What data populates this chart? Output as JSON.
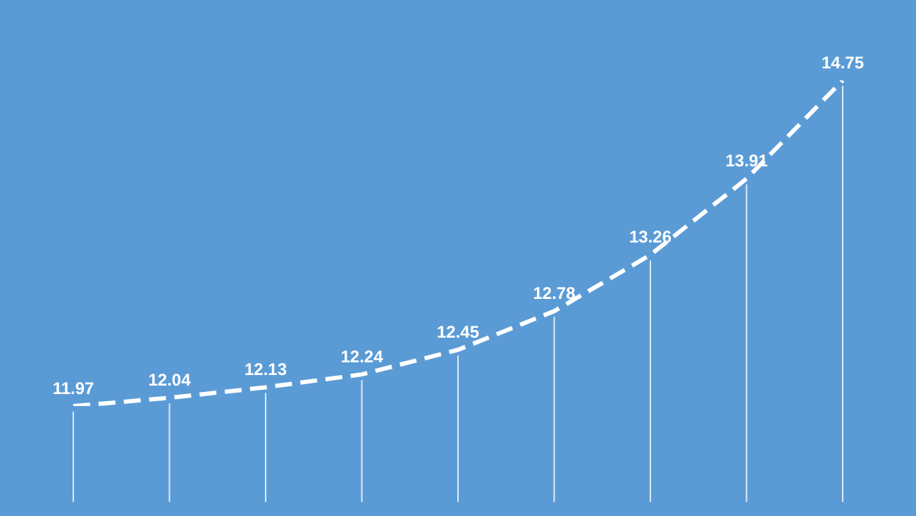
{
  "chart_data": {
    "type": "line",
    "categories": [
      null,
      null,
      null,
      null,
      null,
      null,
      null,
      null,
      null
    ],
    "series": [
      {
        "color": "#ffffff",
        "values": [
          11.97,
          12.04,
          12.13,
          12.24,
          12.45,
          12.78,
          13.26,
          13.91,
          14.75
        ]
      }
    ],
    "data_labels": true,
    "line_style": "dashed",
    "marker": "none",
    "legend": false,
    "grid": "x"
  }
}
